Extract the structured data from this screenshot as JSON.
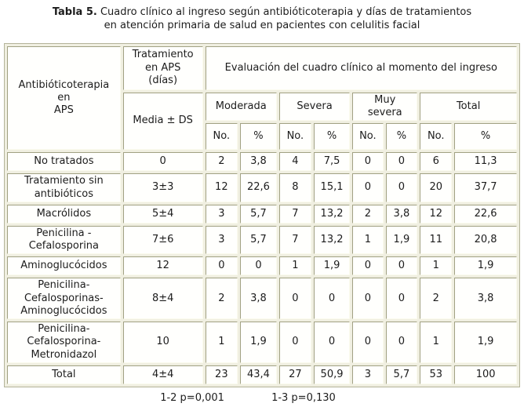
{
  "title": {
    "label": "Tabla 5.",
    "text": "Cuadro clínico al ingreso según antibióticoterapia y días de tratamientos\nen atención primaria de salud en pacientes con celulitis facial"
  },
  "table": {
    "header": {
      "antibioticoterapia": "Antibióticoterapia\nen\nAPS",
      "tratamiento": "Tratamiento\nen APS\n(días)",
      "media": "Media ± DS",
      "evaluacion": "Evaluación del cuadro clínico al momento del ingreso",
      "groups": [
        "Moderada",
        "Severa",
        "Muy\nsevera",
        "Total"
      ],
      "no_label": "No.",
      "pct_label": "%"
    },
    "rows": [
      {
        "label": "No tratados",
        "media": "0",
        "values": [
          "2",
          "3,8",
          "4",
          "7,5",
          "0",
          "0",
          "6",
          "11,3"
        ]
      },
      {
        "label": "Tratamiento sin\nantibióticos",
        "media": "3±3",
        "values": [
          "12",
          "22,6",
          "8",
          "15,1",
          "0",
          "0",
          "20",
          "37,7"
        ]
      },
      {
        "label": "Macrólidos",
        "media": "5±4",
        "values": [
          "3",
          "5,7",
          "7",
          "13,2",
          "2",
          "3,8",
          "12",
          "22,6"
        ]
      },
      {
        "label": "Penicilina -\nCefalosporina",
        "media": "7±6",
        "values": [
          "3",
          "5,7",
          "7",
          "13,2",
          "1",
          "1,9",
          "11",
          "20,8"
        ]
      },
      {
        "label": "Aminoglucócidos",
        "media": "12",
        "values": [
          "0",
          "0",
          "1",
          "1,9",
          "0",
          "0",
          "1",
          "1,9"
        ]
      },
      {
        "label": "Penicilina-\nCefalosporinas-\nAminoglucócidos",
        "media": "8±4",
        "values": [
          "2",
          "3,8",
          "0",
          "0",
          "0",
          "0",
          "2",
          "3,8"
        ]
      },
      {
        "label": "Penicilina-\nCefalosporina-\nMetronidazol",
        "media": "10",
        "values": [
          "1",
          "1,9",
          "0",
          "0",
          "0",
          "0",
          "1",
          "1,9"
        ]
      },
      {
        "label": "Total",
        "media": "4±4",
        "values": [
          "23",
          "43,4",
          "27",
          "50,9",
          "3",
          "5,7",
          "53",
          "100"
        ]
      }
    ]
  },
  "footer": {
    "p1": "1-2 p=0,001",
    "p2": "1-3 p=0,130"
  },
  "colors": {
    "table_spacing_bg": "#f0efe1",
    "outer_border": "#b4b49a",
    "cell_border_dark": "#a1a183",
    "cell_border_light": "#fbfbee",
    "text": "#1c1c1c"
  }
}
